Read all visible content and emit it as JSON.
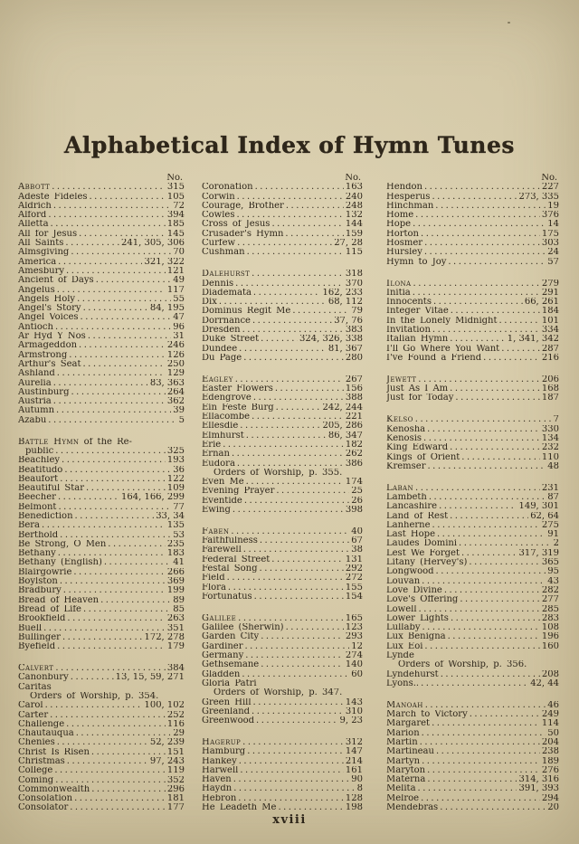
{
  "page": {
    "title": "Alphabetical Index of Hymn Tunes",
    "col_header": "No.",
    "page_number": "xviii",
    "colors": {
      "paper": "#d2c6a4",
      "ink": "#2e261a"
    }
  },
  "columns": [
    {
      "entries": [
        {
          "sc": "Abbott",
          "pages": "315"
        },
        {
          "name": "Adeste Fideles",
          "pages": "105"
        },
        {
          "name": "Aldrich",
          "pages": "72"
        },
        {
          "name": "Alford",
          "pages": "394"
        },
        {
          "name": "Alletta",
          "pages": "185"
        },
        {
          "name": "All for Jesus",
          "pages": "145"
        },
        {
          "name": "All Saints",
          "pages": "241, 305, 306"
        },
        {
          "name": "Almsgiving",
          "pages": "70"
        },
        {
          "name": "America",
          "pages": "321, 322"
        },
        {
          "name": "Amesbury",
          "pages": "121"
        },
        {
          "name": "Ancient of Days",
          "pages": "49"
        },
        {
          "name": "Angelus",
          "pages": "117"
        },
        {
          "name": "Angels Holy",
          "pages": "55"
        },
        {
          "name": "Angel's Story",
          "pages": "84, 195"
        },
        {
          "name": "Angel Voices",
          "pages": "47"
        },
        {
          "name": "Antioch",
          "pages": "96"
        },
        {
          "name": "Ar Hyd Y Nos",
          "pages": "31"
        },
        {
          "name": "Armageddon",
          "pages": "246"
        },
        {
          "name": "Armstrong",
          "pages": "126"
        },
        {
          "name": "Arthur's Seat",
          "pages": "250"
        },
        {
          "name": "Ashland",
          "pages": "129"
        },
        {
          "name": "Aurelia",
          "pages": "83, 363"
        },
        {
          "name": "Austinburg",
          "pages": "264"
        },
        {
          "name": "Austria",
          "pages": "362"
        },
        {
          "name": "Autumn",
          "pages": "39"
        },
        {
          "name": "Azabu",
          "pages": "5"
        },
        {
          "t": "gap"
        },
        {
          "sc": "Battle Hymn",
          "rest": " of the Re-"
        },
        {
          "t": "cont",
          "name": "public",
          "pages": "325"
        },
        {
          "name": "Beachley",
          "pages": "193"
        },
        {
          "name": "Beatitudo",
          "pages": "36"
        },
        {
          "name": "Beaufort",
          "pages": "122"
        },
        {
          "name": "Beautiful Star",
          "pages": "109"
        },
        {
          "name": "Beecher",
          "pages": "164, 166, 299"
        },
        {
          "name": "Belmont",
          "pages": "77"
        },
        {
          "name": "Benediction",
          "pages": "33, 34"
        },
        {
          "name": "Bera",
          "pages": "135"
        },
        {
          "name": "Berthold",
          "pages": "53"
        },
        {
          "name": "Be Strong, O Men",
          "pages": "235"
        },
        {
          "name": "Bethany",
          "pages": "183"
        },
        {
          "name": "Bethany (English)",
          "pages": "41"
        },
        {
          "name": "Blairgowrie",
          "pages": "266"
        },
        {
          "name": "Boylston",
          "pages": "369"
        },
        {
          "name": "Bradbury",
          "pages": "199"
        },
        {
          "name": "Bread of Heaven",
          "pages": "89"
        },
        {
          "name": "Bread of Life",
          "pages": "85"
        },
        {
          "name": "Brookfield",
          "pages": "263"
        },
        {
          "name": "Buell",
          "pages": "351"
        },
        {
          "name": "Bullinger",
          "pages": "172, 278"
        },
        {
          "name": "Byefield",
          "pages": "179"
        },
        {
          "t": "gap"
        },
        {
          "sc": "Calvert",
          "pages": "384"
        },
        {
          "name": "Canonbury",
          "pages": "13, 15, 59, 271"
        },
        {
          "name": "Caritas"
        },
        {
          "t": "note",
          "name": "Orders of Worship, p. 354."
        },
        {
          "name": "Carol",
          "pages": "100, 102"
        },
        {
          "name": "Carter",
          "pages": "252"
        },
        {
          "name": "Challenge",
          "pages": "116"
        },
        {
          "name": "Chautauqua",
          "pages": "29"
        },
        {
          "name": "Chenies",
          "pages": "52, 239"
        },
        {
          "name": "Christ Is Risen",
          "pages": "151"
        },
        {
          "name": "Christmas",
          "pages": "97, 243"
        },
        {
          "name": "College",
          "pages": "119"
        },
        {
          "name": "Coming",
          "pages": "352"
        },
        {
          "name": "Commonwealth",
          "pages": "296"
        },
        {
          "name": "Consolation",
          "pages": "181"
        },
        {
          "name": "Consolator",
          "pages": "177"
        }
      ]
    },
    {
      "entries": [
        {
          "name": "Coronation",
          "pages": "163"
        },
        {
          "name": "Corwin",
          "pages": "240"
        },
        {
          "name": "Courage, Brother",
          "pages": "248"
        },
        {
          "name": "Cowles",
          "pages": "132"
        },
        {
          "name": "Cross of Jesus",
          "pages": "144"
        },
        {
          "name": "Crusader's Hymn",
          "pages": "159"
        },
        {
          "name": "Curfew",
          "pages": "27, 28"
        },
        {
          "name": "Cushman",
          "pages": "115"
        },
        {
          "t": "gap"
        },
        {
          "sc": "Dalehurst",
          "pages": "318"
        },
        {
          "name": "Dennis",
          "pages": "370"
        },
        {
          "name": "Diademata",
          "pages": "162, 233"
        },
        {
          "name": "Dix",
          "pages": "68, 112"
        },
        {
          "name": "Dominus Regit Me",
          "pages": "79"
        },
        {
          "name": "Dorrnance",
          "pages": "37, 76"
        },
        {
          "name": "Dresden",
          "pages": "383"
        },
        {
          "name": "Duke Street",
          "pages": "324, 326, 338"
        },
        {
          "name": "Dundee",
          "pages": "81, 367"
        },
        {
          "name": "Du Page",
          "pages": "280"
        },
        {
          "t": "gap"
        },
        {
          "sc": "Eagley",
          "pages": "267"
        },
        {
          "name": "Easter Flowers",
          "pages": "156"
        },
        {
          "name": "Edengrove",
          "pages": "388"
        },
        {
          "name": "Ein Feste Burg",
          "pages": "242, 244"
        },
        {
          "name": "Ellacombe",
          "pages": "221"
        },
        {
          "name": "Ellesdie",
          "pages": "205, 286"
        },
        {
          "name": "Elmhurst",
          "pages": "86, 347"
        },
        {
          "name": "Erie",
          "pages": "182"
        },
        {
          "name": "Ernan",
          "pages": "262"
        },
        {
          "name": "Eudora",
          "pages": "386"
        },
        {
          "t": "note",
          "name": "Orders of Worship, p. 355."
        },
        {
          "name": "Even Me",
          "pages": "174"
        },
        {
          "name": "Evening Prayer",
          "pages": "25"
        },
        {
          "name": "Eventide",
          "pages": "26"
        },
        {
          "name": "Ewing",
          "pages": "398"
        },
        {
          "t": "gap"
        },
        {
          "sc": "Faben",
          "pages": "40"
        },
        {
          "name": "Faithfulness",
          "pages": "67"
        },
        {
          "name": "Farewell",
          "pages": "38"
        },
        {
          "name": "Federal Street",
          "pages": "131"
        },
        {
          "name": "Festal Song",
          "pages": "292"
        },
        {
          "name": "Field",
          "pages": "272"
        },
        {
          "name": "Flora",
          "pages": "155"
        },
        {
          "name": "Fortunatus",
          "pages": "154"
        },
        {
          "t": "gap"
        },
        {
          "sc": "Galilee",
          "pages": "165"
        },
        {
          "name": "Galilee (Sherwin)",
          "pages": "123"
        },
        {
          "name": "Garden City",
          "pages": "293"
        },
        {
          "name": "Gardiner",
          "pages": "12"
        },
        {
          "name": "Germany",
          "pages": "274"
        },
        {
          "name": "Gethsemane",
          "pages": "140"
        },
        {
          "name": "Gladden",
          "pages": "60"
        },
        {
          "name": "Gloria Patri"
        },
        {
          "t": "note",
          "name": "Orders of Worship, p. 347."
        },
        {
          "name": "Green Hill",
          "pages": "143"
        },
        {
          "name": "Greenland",
          "pages": "310"
        },
        {
          "name": "Greenwood",
          "pages": "9, 23"
        },
        {
          "t": "gap"
        },
        {
          "sc": "Hagerup",
          "pages": "312"
        },
        {
          "name": "Hamburg",
          "pages": "147"
        },
        {
          "name": "Hankey",
          "pages": "214"
        },
        {
          "name": "Harwell",
          "pages": "161"
        },
        {
          "name": "Haven",
          "pages": "90"
        },
        {
          "name": "Haydn",
          "pages": "8"
        },
        {
          "name": "Hebron",
          "pages": "128"
        },
        {
          "name": "He Leadeth Me",
          "pages": "198"
        }
      ]
    },
    {
      "entries": [
        {
          "name": "Hendon",
          "pages": "227"
        },
        {
          "name": "Hesperus",
          "pages": "273, 335"
        },
        {
          "name": "Hinchman",
          "pages": "19"
        },
        {
          "name": "Home",
          "pages": "376"
        },
        {
          "name": "Hope",
          "pages": "14"
        },
        {
          "name": "Horton",
          "pages": "175"
        },
        {
          "name": "Hosmer",
          "pages": "303"
        },
        {
          "name": "Hursley",
          "pages": "24"
        },
        {
          "name": "Hymn to Joy",
          "pages": "57"
        },
        {
          "t": "gap"
        },
        {
          "sc": "Ilona",
          "pages": "279"
        },
        {
          "name": "Initia",
          "pages": "291"
        },
        {
          "name": "Innocents",
          "pages": "66, 261"
        },
        {
          "name": "Integer Vitae",
          "pages": "184"
        },
        {
          "name": "In the Lonely Midnight",
          "pages": "101"
        },
        {
          "name": "Invitation",
          "pages": "334"
        },
        {
          "name": "Italian Hymn",
          "pages": "1, 341, 342"
        },
        {
          "name": "I'll Go Where You Want",
          "pages": "287"
        },
        {
          "name": "I've Found a Friend",
          "pages": "216"
        },
        {
          "t": "gap"
        },
        {
          "sc": "Jewett",
          "pages": "206"
        },
        {
          "name": "Just As I Am",
          "pages": "168"
        },
        {
          "name": "Just for Today",
          "pages": "187"
        },
        {
          "t": "gap"
        },
        {
          "sc": "Kelso",
          "pages": "7"
        },
        {
          "name": "Kenosha",
          "pages": "330"
        },
        {
          "name": "Kenosis",
          "pages": "134"
        },
        {
          "name": "King Edward",
          "pages": "232"
        },
        {
          "name": "Kings of Orient",
          "pages": "110"
        },
        {
          "name": "Kremser",
          "pages": "48"
        },
        {
          "t": "gap"
        },
        {
          "sc": "Laban",
          "pages": "231"
        },
        {
          "name": "Lambeth",
          "pages": "87"
        },
        {
          "name": "Lancashire",
          "pages": "149, 301"
        },
        {
          "name": "Land of Rest",
          "pages": "62, 64"
        },
        {
          "name": "Lanherne",
          "pages": "275"
        },
        {
          "name": "Last Hope",
          "pages": "91"
        },
        {
          "name": "Laudes Domini",
          "pages": "2"
        },
        {
          "name": "Lest We Forget",
          "pages": "317, 319"
        },
        {
          "name": "Litany (Hervey's)",
          "pages": "365"
        },
        {
          "name": "Longwood",
          "pages": "95"
        },
        {
          "name": "Louvan",
          "pages": "43"
        },
        {
          "name": "Love Divine",
          "pages": "282"
        },
        {
          "name": "Love's Offering",
          "pages": "277"
        },
        {
          "name": "Lowell",
          "pages": "285"
        },
        {
          "name": "Lower Lights",
          "pages": "283"
        },
        {
          "name": "Lullaby",
          "pages": "108"
        },
        {
          "name": "Lux Benigna",
          "pages": "196"
        },
        {
          "name": "Lux Eoi",
          "pages": "160"
        },
        {
          "name": "Lynde"
        },
        {
          "t": "note",
          "name": "Orders of Worship, p. 356."
        },
        {
          "name": "Lyndehurst",
          "pages": "208"
        },
        {
          "name": "Lyons..",
          "pages": "42, 44"
        },
        {
          "t": "gap"
        },
        {
          "sc": "Manoah",
          "pages": "46"
        },
        {
          "name": "March to Victory",
          "pages": "249"
        },
        {
          "name": "Margaret",
          "pages": "114"
        },
        {
          "name": "Marion",
          "pages": "50"
        },
        {
          "name": "Martin",
          "pages": "204"
        },
        {
          "name": "Martineau",
          "pages": "238"
        },
        {
          "name": "Martyn",
          "pages": "189"
        },
        {
          "name": "Maryton",
          "pages": "276"
        },
        {
          "name": "Materna",
          "pages": "314, 316"
        },
        {
          "name": "Melita",
          "pages": "391, 393"
        },
        {
          "name": "Melroe",
          "pages": "294"
        },
        {
          "name": "Mendebras",
          "pages": "20"
        }
      ]
    }
  ]
}
